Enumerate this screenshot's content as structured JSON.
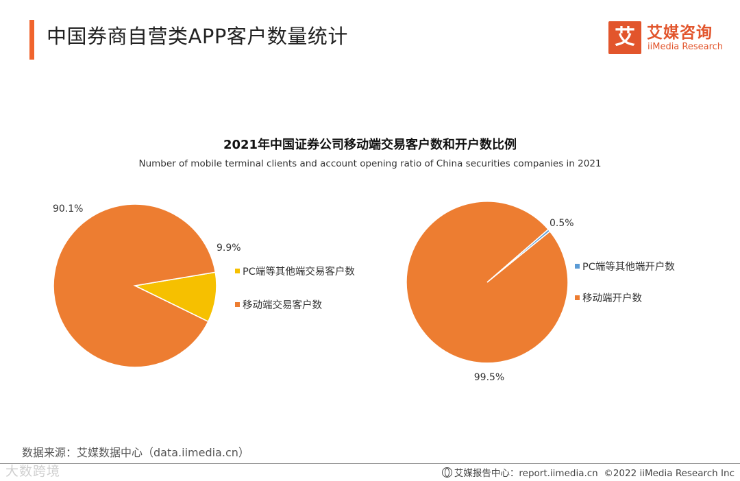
{
  "header": {
    "title": "中国券商自营类APP客户数量统计",
    "accent_color": "#f0642d"
  },
  "logo": {
    "mark": "艾",
    "name_cn": "艾媒咨询",
    "name_en": "iiMedia Research"
  },
  "chart_data": [
    {
      "type": "pie",
      "title": "2021年中国证券公司移动端交易客户数和开户数比例",
      "subtitle": "Number of mobile terminal clients and account opening ratio of China securities companies in 2021",
      "slices": [
        {
          "label": "PC端等其他端交易客户数",
          "value": 9.9,
          "display": "9.9%",
          "color": "#f6c000"
        },
        {
          "label": "移动端交易客户数",
          "value": 90.1,
          "display": "90.1%",
          "color": "#ed7d31"
        }
      ]
    },
    {
      "type": "pie",
      "slices": [
        {
          "label": "PC端等其他端开户数",
          "value": 0.5,
          "display": "0.5%",
          "color": "#5b9bd5"
        },
        {
          "label": "移动端开户数",
          "value": 99.5,
          "display": "99.5%",
          "color": "#ed7d31"
        }
      ]
    }
  ],
  "source": "数据来源：艾媒数据中心（data.iimedia.cn）",
  "watermark": "大数跨境",
  "footer": {
    "report_center": "艾媒报告中心：report.iimedia.cn",
    "copyright": "©2022  iiMedia Research  Inc"
  }
}
